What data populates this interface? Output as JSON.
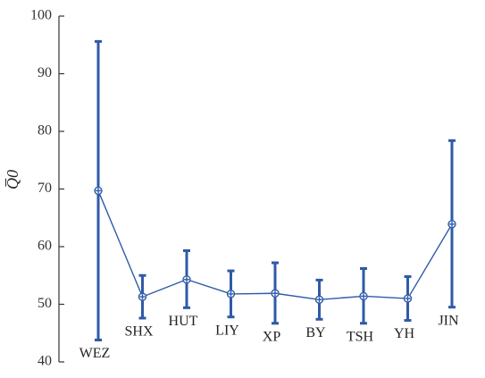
{
  "chart_data": {
    "type": "line",
    "ylabel": "Q̅0",
    "ylim": [
      40,
      100
    ],
    "yticks": [
      40,
      50,
      60,
      70,
      80,
      90,
      100
    ],
    "grid": false,
    "categories": [
      "WEZ",
      "SHX",
      "HUT",
      "LIY",
      "XP",
      "BY",
      "TSH",
      "YH",
      "JIN"
    ],
    "series": [
      {
        "values": [
          69.7,
          51.3,
          54.3,
          51.8,
          51.9,
          50.8,
          51.4,
          51.0,
          63.9
        ],
        "error_bars": [
          [
            43.8,
            95.6
          ],
          [
            47.6,
            55.0
          ],
          [
            49.4,
            59.3
          ],
          [
            47.8,
            55.8
          ],
          [
            46.7,
            57.2
          ],
          [
            47.4,
            54.2
          ],
          [
            46.7,
            56.2
          ],
          [
            47.2,
            54.8
          ],
          [
            49.5,
            78.4
          ]
        ]
      }
    ],
    "colors": {
      "series": "#2f5aa8",
      "axis": "#333333"
    }
  }
}
